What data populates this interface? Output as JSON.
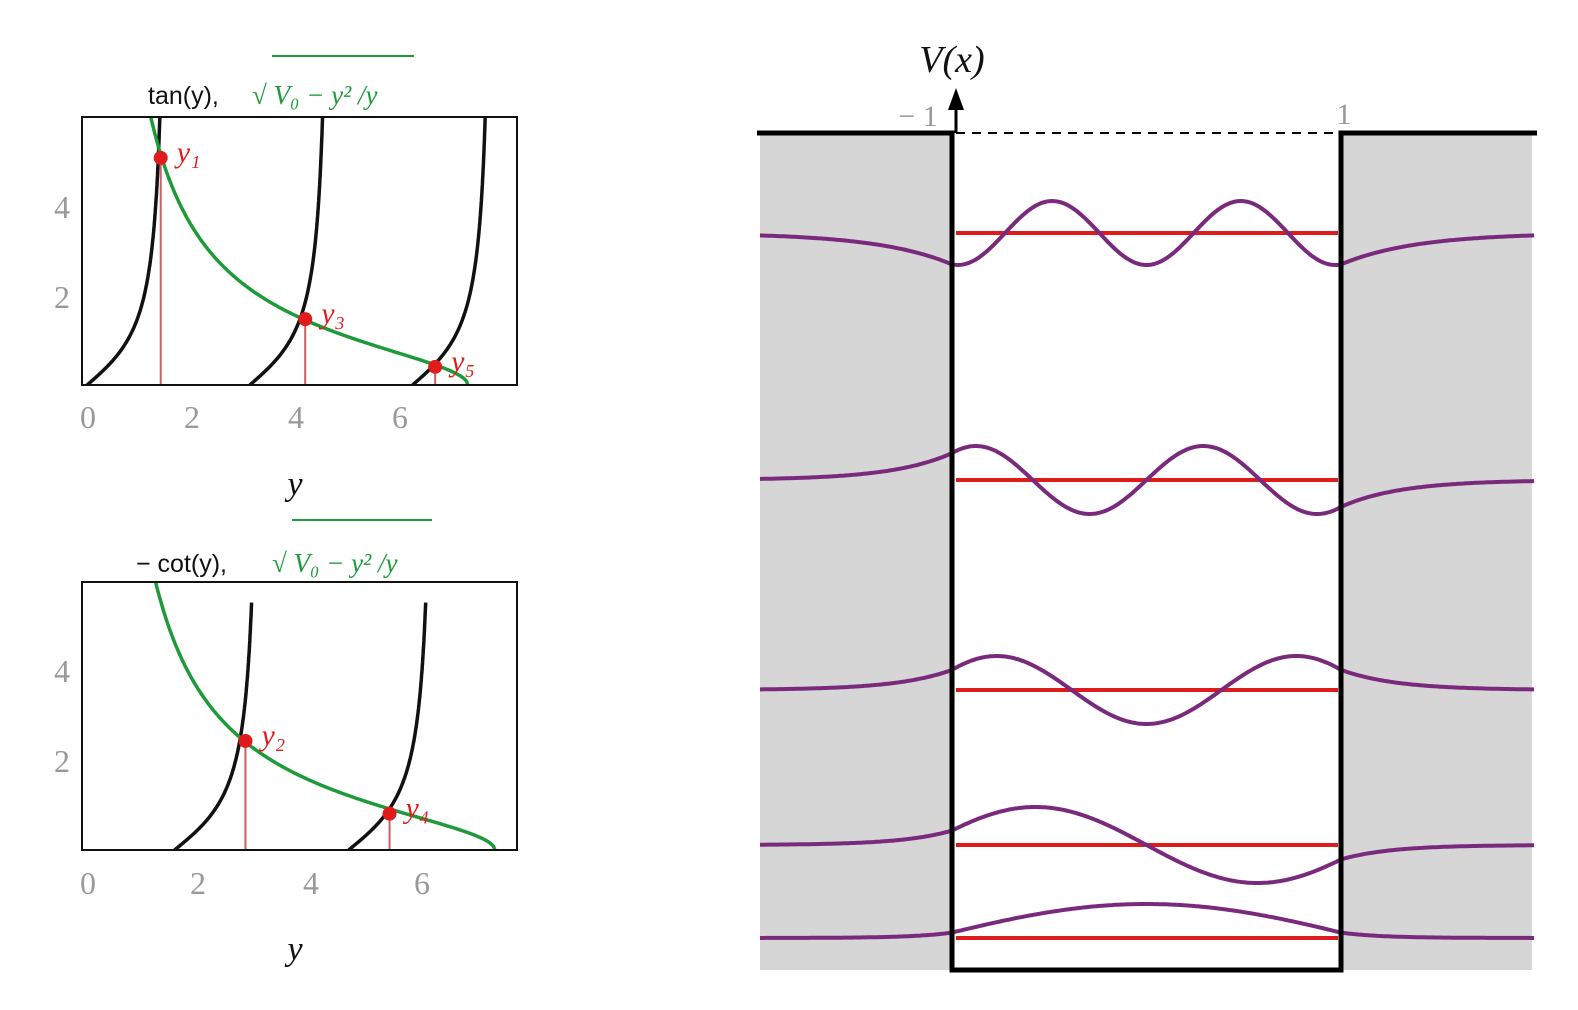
{
  "colors": {
    "tan_curve": "#111111",
    "green_curve": "#1e9a3a",
    "solution": "#e01b1b",
    "solution_line": "#c96060",
    "wavefunction": "#7a2a7c",
    "energy_level": "#e01b1b",
    "barrier_fill": "#d6d6d6",
    "potential": "#000000",
    "tick_label": "#999999"
  },
  "top_panel": {
    "title_black": "tan(y),",
    "title_green": "√ V₀ − y² /y",
    "xlabel": "y",
    "xticks": [
      "0",
      "2",
      "4",
      "6"
    ],
    "yticks": [
      "2",
      "4"
    ],
    "solutions": [
      {
        "label": "y₁",
        "y": 1.42,
        "value": 5.0
      },
      {
        "label": "y₃",
        "y": 4.21,
        "value": 1.45
      },
      {
        "label": "y₅",
        "y": 6.72,
        "value": 0.4
      }
    ]
  },
  "bottom_panel": {
    "title_black": "− cot(y),",
    "title_green": "√ V₀ − y² /y",
    "xlabel": "y",
    "xticks": [
      "0",
      "2",
      "4",
      "6"
    ],
    "yticks": [
      "2",
      "4"
    ],
    "solutions": [
      {
        "label": "y₂",
        "y": 2.85,
        "value": 2.4
      },
      {
        "label": "y₄",
        "y": 5.45,
        "value": 0.8
      }
    ]
  },
  "well": {
    "ylabel": "V(x)",
    "left_edge_label": "− 1",
    "right_edge_label": "1",
    "levels": 5
  }
}
